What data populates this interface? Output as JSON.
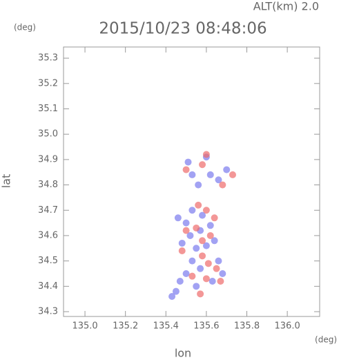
{
  "chart_data": {
    "type": "scatter",
    "title": "2015/10/23 08:48:06",
    "subtitle": "ALT(km) 2.0",
    "y_unit": "(deg)",
    "x_unit": "(deg)",
    "x_label": "lon",
    "y_label": "lat",
    "xlim": [
      134.894,
      136.16
    ],
    "ylim": [
      34.281,
      35.344
    ],
    "xticks": [
      {
        "value": 135.0,
        "label": "135.0"
      },
      {
        "value": 135.2,
        "label": "135.2"
      },
      {
        "value": 135.4,
        "label": "135.4"
      },
      {
        "value": 135.6,
        "label": "135.6"
      },
      {
        "value": 135.8,
        "label": "135.8"
      },
      {
        "value": 136.0,
        "label": "136.0"
      }
    ],
    "yticks": [
      34.3,
      34.4,
      34.5,
      34.6,
      34.7,
      34.8,
      34.9,
      {
        "value": 35.0,
        "label": "35.0"
      },
      35.1,
      35.2,
      35.3
    ],
    "series": [
      {
        "color": "#7b7bee",
        "x": [
          135.43,
          135.47,
          135.5,
          135.53,
          135.55,
          135.52,
          135.5,
          135.53,
          135.58,
          135.62,
          135.64,
          135.66,
          135.68,
          135.63,
          135.57,
          135.55,
          135.6,
          135.48,
          135.46,
          135.57,
          135.53,
          135.56,
          135.62,
          135.66,
          135.7,
          135.6,
          135.51,
          135.45
        ],
        "values": [
          34.36,
          34.42,
          34.45,
          34.5,
          34.55,
          34.6,
          34.65,
          34.7,
          34.68,
          34.64,
          34.58,
          34.5,
          34.45,
          34.42,
          34.47,
          34.4,
          34.56,
          34.57,
          34.67,
          34.62,
          34.84,
          34.8,
          34.84,
          34.82,
          34.86,
          34.91,
          34.89,
          34.38
        ]
      },
      {
        "color": "#ee6b6b",
        "x": [
          135.57,
          135.6,
          135.65,
          135.58,
          135.62,
          135.58,
          135.55,
          135.6,
          135.5,
          135.64,
          135.53,
          135.67,
          135.61,
          135.5,
          135.58,
          135.68,
          135.73,
          135.6,
          135.48,
          135.56
        ],
        "values": [
          34.37,
          34.43,
          34.47,
          34.52,
          34.6,
          34.58,
          34.63,
          34.7,
          34.62,
          34.67,
          34.44,
          34.42,
          34.49,
          34.86,
          34.88,
          34.8,
          34.84,
          34.92,
          34.54,
          34.72
        ]
      }
    ]
  }
}
